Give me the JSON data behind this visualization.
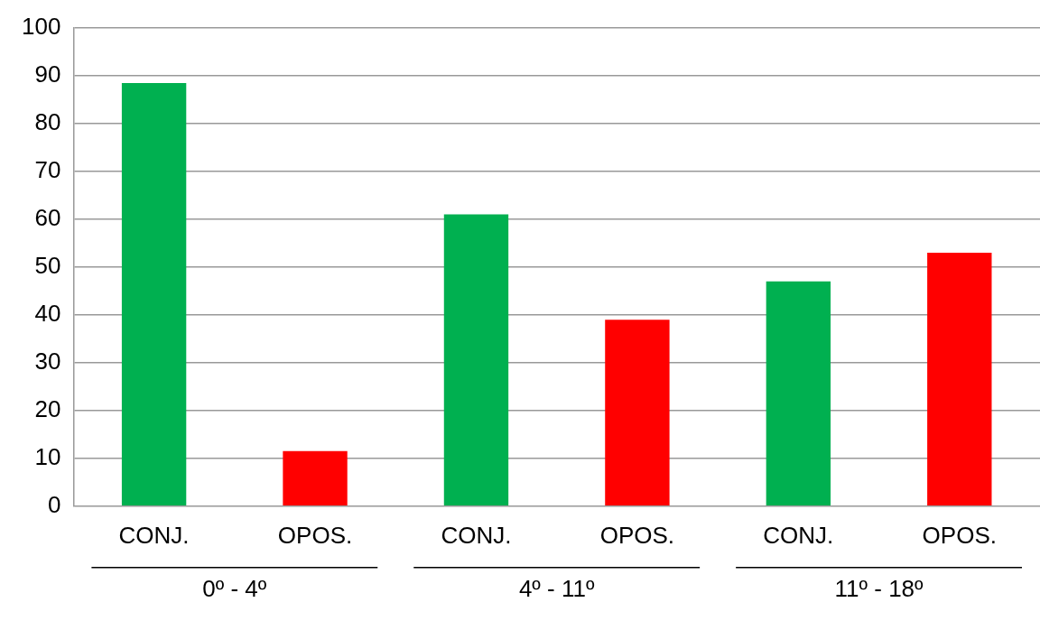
{
  "chart_data": {
    "type": "bar",
    "categories": [
      "CONJ.",
      "OPOS.",
      "CONJ.",
      "OPOS.",
      "CONJ.",
      "OPOS."
    ],
    "values": [
      88.5,
      11.5,
      61,
      39,
      47,
      53
    ],
    "colors": [
      "#00b050",
      "#ff0000",
      "#00b050",
      "#ff0000",
      "#00b050",
      "#ff0000"
    ],
    "annotations": [
      "0º - 4º",
      "4º - 11º",
      "11º - 18º"
    ],
    "ylim": [
      0,
      100
    ],
    "yticks": [
      0,
      10,
      20,
      30,
      40,
      50,
      60,
      70,
      80,
      90,
      100
    ],
    "grid": "y"
  }
}
